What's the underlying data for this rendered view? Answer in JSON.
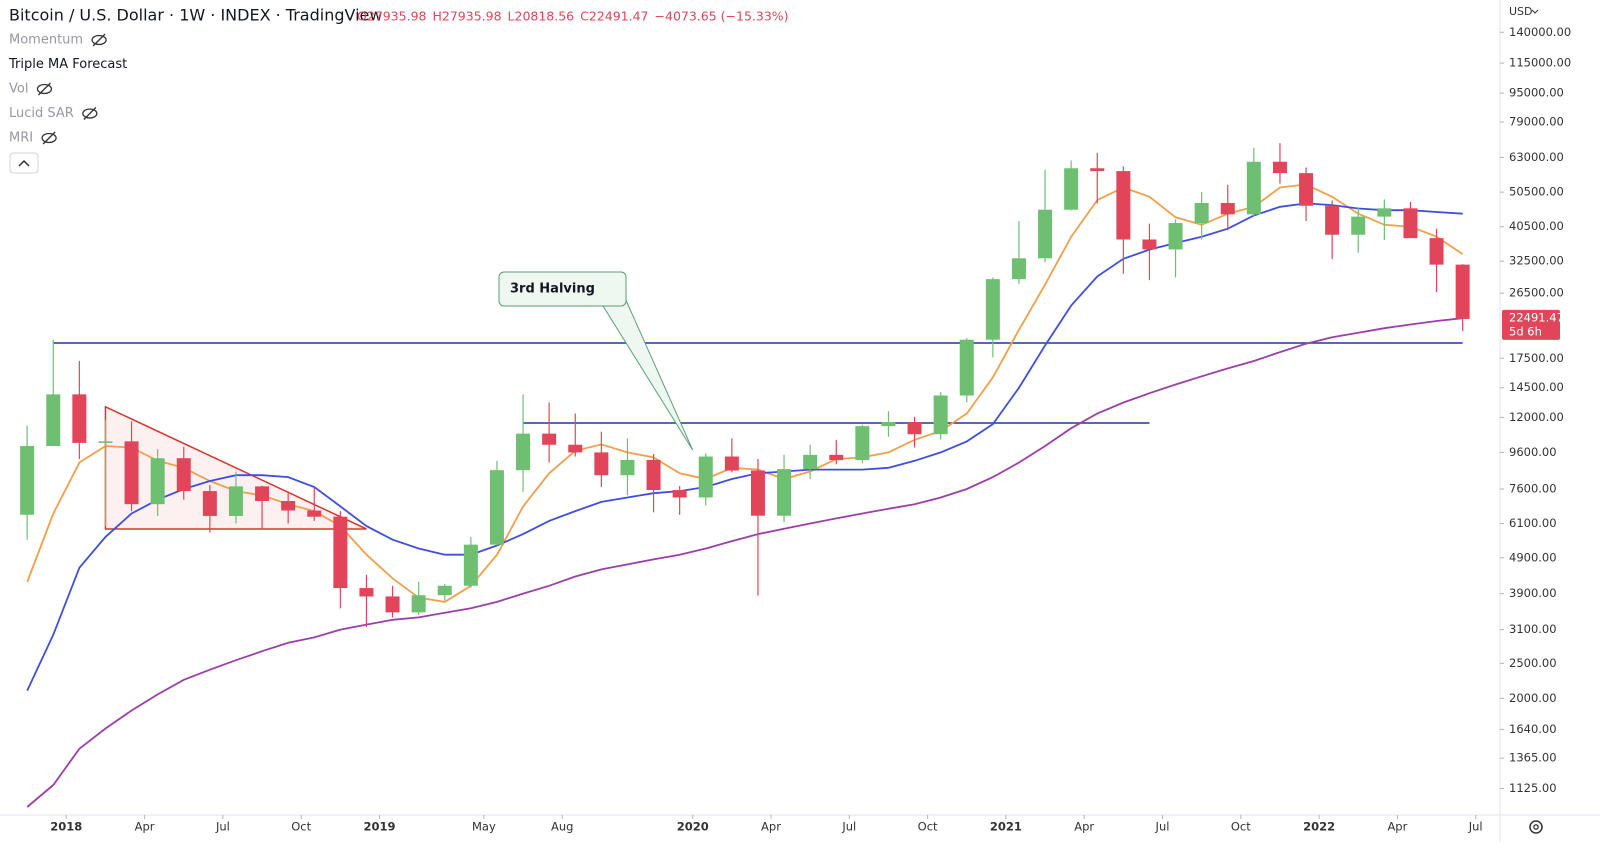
{
  "header": {
    "symbol": "Bitcoin / U.S. Dollar · 1W · INDEX · TradingView",
    "ohlc": [
      "O27935.98",
      "H27935.98",
      "L20818.56",
      "C22491.47",
      "−4073.65 (−15.33%)"
    ]
  },
  "indicators": {
    "names": [
      "Momentum",
      "Triple MA Forecast",
      "Vol",
      "Lucid SAR",
      "MRI"
    ],
    "hidden": [
      true,
      false,
      true,
      true,
      true
    ]
  },
  "currency": "USD",
  "countdown": "5d 6h",
  "chart_data": {
    "type": "candlestick",
    "log_scale": true,
    "up_color": "#6fbf73",
    "down_color": "#e0455a",
    "x": [
      "2017-11",
      "2017-12",
      "2018-01",
      "2018-02",
      "2018-03",
      "2018-04",
      "2018-05",
      "2018-06",
      "2018-07",
      "2018-08",
      "2018-09",
      "2018-10",
      "2018-11",
      "2018-12",
      "2019-01",
      "2019-02",
      "2019-03",
      "2019-04",
      "2019-05",
      "2019-06",
      "2019-07",
      "2019-08",
      "2019-09",
      "2019-10",
      "2019-11",
      "2019-12",
      "2020-01",
      "2020-02",
      "2020-03",
      "2020-04",
      "2020-05",
      "2020-06",
      "2020-07",
      "2020-08",
      "2020-09",
      "2020-10",
      "2020-11",
      "2020-12",
      "2021-01",
      "2021-02",
      "2021-03",
      "2021-04",
      "2021-05",
      "2021-06",
      "2021-07",
      "2021-08",
      "2021-09",
      "2021-10",
      "2021-11",
      "2021-12",
      "2022-01",
      "2022-02",
      "2022-03",
      "2022-04",
      "2022-05",
      "2022-06"
    ],
    "open": [
      6450,
      10000,
      13900,
      10200,
      10300,
      6900,
      9250,
      7500,
      6400,
      7730,
      7040,
      6625,
      6370,
      4040,
      3830,
      3460,
      3860,
      4100,
      5330,
      8570,
      10820,
      10080,
      9600,
      8300,
      9150,
      7550,
      7200,
      9350,
      8550,
      6410,
      8630,
      9450,
      9140,
      11350,
      11650,
      10780,
      13800,
      19700,
      28990,
      33110,
      45140,
      58800,
      57750,
      37330,
      35040,
      41460,
      47130,
      43820,
      61300,
      57000,
      46300,
      38480,
      43190,
      45540,
      37650,
      31800
    ],
    "high": [
      11400,
      19700,
      17200,
      11800,
      11700,
      9800,
      9950,
      7800,
      8500,
      7760,
      7400,
      7680,
      6600,
      4400,
      4100,
      4200,
      4150,
      5600,
      9100,
      13900,
      13200,
      12300,
      10950,
      10500,
      9500,
      7750,
      9550,
      10500,
      9200,
      9460,
      10080,
      10400,
      11450,
      12480,
      12050,
      14100,
      19900,
      29300,
      41950,
      58350,
      61800,
      64850,
      59500,
      41300,
      42450,
      50500,
      52900,
      67000,
      69000,
      59100,
      47900,
      45850,
      48200,
      47450,
      40000,
      31900
    ],
    "low": [
      5500,
      10900,
      9200,
      6000,
      6600,
      6400,
      7100,
      5750,
      6100,
      5880,
      6100,
      6200,
      3550,
      3150,
      3350,
      3400,
      3730,
      4050,
      5300,
      7450,
      9000,
      9350,
      7700,
      7300,
      6550,
      6450,
      6850,
      8450,
      3850,
      6150,
      8100,
      8900,
      8950,
      10600,
      9900,
      10430,
      13200,
      17600,
      28130,
      32300,
      44950,
      47000,
      30000,
      28800,
      29300,
      37300,
      39600,
      43300,
      53300,
      42000,
      32950,
      34300,
      37200,
      37700,
      26700,
      20818.56
    ],
    "close": [
      10000,
      13900,
      10200,
      10300,
      6900,
      9250,
      7500,
      6400,
      7730,
      7040,
      6625,
      6370,
      4040,
      3830,
      3460,
      3860,
      4100,
      5330,
      8570,
      10820,
      10080,
      9600,
      8300,
      9150,
      7550,
      7200,
      9350,
      8550,
      6410,
      8630,
      9450,
      9140,
      11350,
      11650,
      10780,
      13800,
      19700,
      28990,
      33110,
      45140,
      58800,
      57750,
      37330,
      35040,
      41460,
      47130,
      43820,
      61300,
      57000,
      46300,
      38480,
      43190,
      45540,
      37650,
      31800,
      22491.47
    ],
    "lines": [
      {
        "color": "#f0a04b",
        "values": [
          4200,
          6500,
          9000,
          10000,
          9900,
          9100,
          8700,
          8000,
          7500,
          7300,
          6900,
          6600,
          6000,
          5000,
          4300,
          3800,
          3700,
          4100,
          5000,
          6800,
          8400,
          9700,
          10100,
          9600,
          9300,
          8400,
          8100,
          8700,
          8600,
          8100,
          8500,
          9200,
          9300,
          9600,
          10400,
          11000,
          12300,
          15500,
          21000,
          28000,
          38000,
          48000,
          52000,
          49000,
          43000,
          41000,
          44000,
          46000,
          52000,
          53000,
          49000,
          44000,
          41000,
          40500,
          38000,
          34000
        ]
      },
      {
        "color": "#3d4ee0",
        "values": [
          2100,
          3000,
          4600,
          5600,
          6500,
          7100,
          7600,
          8000,
          8300,
          8300,
          8200,
          7700,
          6800,
          6000,
          5500,
          5200,
          5000,
          5000,
          5300,
          5700,
          6200,
          6600,
          7000,
          7200,
          7400,
          7500,
          7700,
          8100,
          8400,
          8500,
          8600,
          8600,
          8600,
          8700,
          9100,
          9600,
          10300,
          11500,
          14500,
          19000,
          24500,
          29500,
          33000,
          35000,
          36500,
          38000,
          40000,
          43500,
          46000,
          47000,
          46500,
          45500,
          45000,
          45000,
          44500,
          44000
        ]
      },
      {
        "color": "#9b3fa8",
        "values": [
          1000,
          1150,
          1450,
          1650,
          1850,
          2050,
          2250,
          2400,
          2550,
          2700,
          2850,
          2950,
          3100,
          3200,
          3300,
          3350,
          3450,
          3550,
          3700,
          3900,
          4100,
          4350,
          4550,
          4700,
          4850,
          5000,
          5200,
          5450,
          5700,
          5900,
          6100,
          6300,
          6500,
          6700,
          6900,
          7200,
          7600,
          8200,
          9000,
          10000,
          11200,
          12300,
          13200,
          14000,
          14800,
          15600,
          16400,
          17200,
          18200,
          19200,
          20000,
          20600,
          21200,
          21700,
          22200,
          22600
        ]
      }
    ],
    "levels": [
      {
        "value": 19290,
        "x": [
          "2017-12",
          "2022-06"
        ],
        "color": "#1a3a9c"
      },
      {
        "value": 11580,
        "x": [
          "2019-06",
          "2021-06"
        ],
        "color": "#1a3a9c"
      }
    ],
    "triangle": {
      "x": [
        "2018-02",
        "2018-02",
        "2018-12"
      ],
      "values": [
        12840,
        5890,
        5890
      ],
      "color": "#d9342b"
    },
    "annotation": {
      "text": "3rd Halving",
      "x": "2020-01",
      "value": 9750
    },
    "xlim": [
      "2017-10",
      "2022-08"
    ],
    "xticks": [
      {
        "value": "2018-01",
        "label": "2018"
      },
      {
        "value": "2018-04",
        "label": "Apr"
      },
      {
        "value": "2018-07",
        "label": "Jul"
      },
      {
        "value": "2018-10",
        "label": "Oct"
      },
      {
        "value": "2019-01",
        "label": "2019"
      },
      {
        "value": "2019-05",
        "label": "May"
      },
      {
        "value": "2019-08",
        "label": "Aug"
      },
      {
        "value": "2020-01",
        "label": "2020"
      },
      {
        "value": "2020-04",
        "label": "Apr"
      },
      {
        "value": "2020-07",
        "label": "Jul"
      },
      {
        "value": "2020-10",
        "label": "Oct"
      },
      {
        "value": "2021-01",
        "label": "2021"
      },
      {
        "value": "2021-04",
        "label": "Apr"
      },
      {
        "value": "2021-07",
        "label": "Jul"
      },
      {
        "value": "2021-10",
        "label": "Oct"
      },
      {
        "value": "2022-01",
        "label": "2022"
      },
      {
        "value": "2022-04",
        "label": "Apr"
      },
      {
        "value": "2022-07",
        "label": "Jul"
      }
    ],
    "ylim": [
      950,
      172000
    ],
    "yticks": [
      {
        "value": 1125,
        "label": "1125.00"
      },
      {
        "value": 1365,
        "label": "1365.00"
      },
      {
        "value": 1640,
        "label": "1640.00"
      },
      {
        "value": 2000,
        "label": "2000.00"
      },
      {
        "value": 2500,
        "label": "2500.00"
      },
      {
        "value": 3100,
        "label": "3100.00"
      },
      {
        "value": 3900,
        "label": "3900.00"
      },
      {
        "value": 4900,
        "label": "4900.00"
      },
      {
        "value": 6100,
        "label": "6100.00"
      },
      {
        "value": 7600,
        "label": "7600.00"
      },
      {
        "value": 9600,
        "label": "9600.00"
      },
      {
        "value": 12000,
        "label": "12000.00"
      },
      {
        "value": 14500,
        "label": "14500.00"
      },
      {
        "value": 17500,
        "label": "17500.00"
      },
      {
        "value": 26500,
        "label": "26500.00"
      },
      {
        "value": 32500,
        "label": "32500.00"
      },
      {
        "value": 40500,
        "label": "40500.00"
      },
      {
        "value": 50500,
        "label": "50500.00"
      },
      {
        "value": 63000,
        "label": "63000.00"
      },
      {
        "value": 79000,
        "label": "79000.00"
      },
      {
        "value": 95000,
        "label": "95000.00"
      },
      {
        "value": 115000,
        "label": "115000.00"
      },
      {
        "value": 140000,
        "label": "140000.00"
      }
    ]
  }
}
